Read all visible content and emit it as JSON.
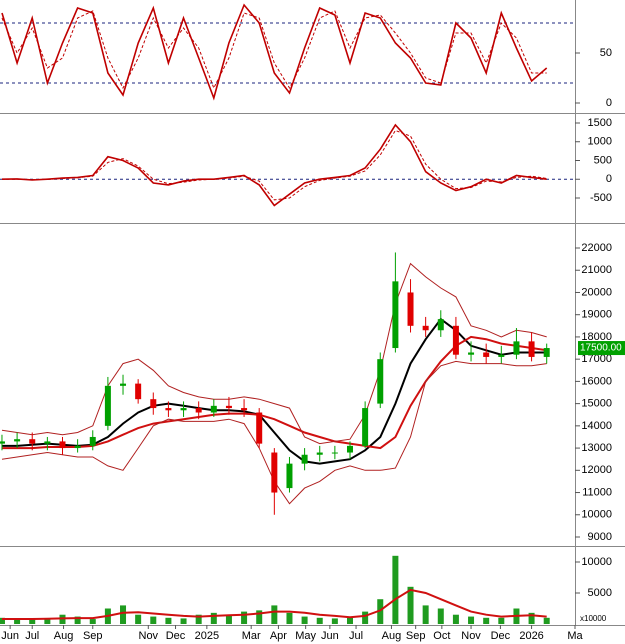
{
  "chart_data": [
    {
      "type": "line",
      "x": [
        0,
        1,
        2,
        3,
        4,
        5,
        6,
        7,
        8,
        9,
        10,
        11,
        12,
        13,
        14,
        15,
        16,
        17,
        18,
        19,
        20,
        21,
        22,
        23,
        24,
        25,
        26,
        27,
        28,
        29,
        30,
        31,
        32,
        33,
        34,
        35,
        36
      ],
      "xlim": [
        -0.13,
        37.87
      ],
      "ylim": [
        -9,
        101
      ],
      "yticks": [
        0,
        50
      ],
      "ref_lines": [
        80,
        20
      ],
      "ref_color": "#1a237e",
      "series": [
        {
          "color": "#c00000",
          "dash": false,
          "values": [
            90,
            40,
            85,
            20,
            60,
            95,
            90,
            30,
            8,
            60,
            95,
            40,
            85,
            45,
            5,
            60,
            98,
            80,
            30,
            10,
            55,
            95,
            88,
            40,
            90,
            85,
            60,
            45,
            20,
            18,
            80,
            65,
            30,
            90,
            55,
            22,
            35
          ]
        },
        {
          "color": "#c00000",
          "dash": true,
          "values": [
            85,
            50,
            75,
            35,
            45,
            85,
            92,
            45,
            15,
            45,
            85,
            55,
            75,
            55,
            15,
            45,
            90,
            85,
            40,
            15,
            45,
            85,
            92,
            55,
            85,
            88,
            70,
            50,
            25,
            20,
            70,
            70,
            40,
            80,
            65,
            30,
            30
          ]
        }
      ]
    },
    {
      "type": "line",
      "x": [
        0,
        1,
        2,
        3,
        4,
        5,
        6,
        7,
        8,
        9,
        10,
        11,
        12,
        13,
        14,
        15,
        16,
        17,
        18,
        19,
        20,
        21,
        22,
        23,
        24,
        25,
        26,
        27,
        28,
        29,
        30,
        31,
        32,
        33,
        34,
        35,
        36
      ],
      "xlim": [
        -0.13,
        37.87
      ],
      "ylim": [
        -1140,
        1713
      ],
      "yticks": [
        -500,
        0,
        500,
        1000,
        1500
      ],
      "ref_lines": [
        0
      ],
      "ref_color": "#1a237e",
      "series": [
        {
          "color": "#c00000",
          "dash": false,
          "values": [
            0,
            10,
            -20,
            0,
            30,
            50,
            100,
            600,
            500,
            300,
            -100,
            -150,
            -50,
            0,
            0,
            50,
            100,
            -150,
            -700,
            -400,
            -100,
            0,
            50,
            100,
            300,
            800,
            1450,
            1000,
            200,
            -100,
            -300,
            -200,
            0,
            -100,
            100,
            50,
            0
          ]
        },
        {
          "color": "#c00000",
          "dash": true,
          "values": [
            0,
            5,
            -10,
            -5,
            20,
            40,
            80,
            450,
            550,
            350,
            0,
            -120,
            -80,
            -20,
            0,
            30,
            80,
            -50,
            -550,
            -500,
            -200,
            -30,
            30,
            80,
            220,
            650,
            1300,
            1150,
            400,
            0,
            -250,
            -220,
            -50,
            -70,
            50,
            80,
            20
          ]
        }
      ]
    },
    {
      "type": "candlestick",
      "x": [
        0,
        1,
        2,
        3,
        4,
        5,
        6,
        7,
        8,
        9,
        10,
        11,
        12,
        13,
        14,
        15,
        16,
        17,
        18,
        19,
        20,
        21,
        22,
        23,
        24,
        25,
        26,
        27,
        28,
        29,
        30,
        31,
        32,
        33,
        34,
        35,
        36
      ],
      "xlim": [
        -0.13,
        37.87
      ],
      "ylim": [
        8640,
        23080
      ],
      "yticks": [
        9000,
        10000,
        11000,
        12000,
        13000,
        14000,
        15000,
        16000,
        17000,
        18000,
        19000,
        20000,
        21000,
        22000
      ],
      "up_color": "#00a000",
      "down_color": "#e00000",
      "open": [
        13200,
        13300,
        13400,
        13200,
        13300,
        13000,
        13100,
        14000,
        15800,
        15900,
        15200,
        14800,
        14700,
        14800,
        14600,
        14900,
        14800,
        14600,
        12800,
        11200,
        12300,
        12700,
        12800,
        12800,
        13100,
        15000,
        17500,
        20000,
        18500,
        18300,
        18500,
        17200,
        17300,
        17100,
        17200,
        17800,
        17100
      ],
      "high": [
        13600,
        13700,
        13700,
        13500,
        13500,
        13400,
        13800,
        16200,
        16300,
        16100,
        15500,
        15100,
        15100,
        15100,
        15200,
        15300,
        15200,
        14800,
        13000,
        12600,
        13000,
        13100,
        13100,
        13300,
        15100,
        17300,
        21800,
        20600,
        18900,
        19200,
        18900,
        17800,
        17700,
        17600,
        18400,
        18200,
        17700
      ],
      "low": [
        12900,
        13000,
        12900,
        12900,
        12700,
        12800,
        12900,
        13800,
        15400,
        15000,
        14500,
        14400,
        14400,
        14300,
        14400,
        14500,
        14400,
        13000,
        10000,
        11000,
        12000,
        12400,
        12500,
        12500,
        13000,
        14800,
        17300,
        18200,
        18000,
        18000,
        17000,
        16900,
        16800,
        16800,
        17000,
        16900,
        16800
      ],
      "close": [
        13300,
        13400,
        13200,
        13300,
        13000,
        13100,
        13500,
        15800,
        15900,
        15200,
        14800,
        14700,
        14800,
        14600,
        14900,
        14800,
        14700,
        13200,
        11000,
        12300,
        12700,
        12800,
        12800,
        13100,
        14800,
        17000,
        20500,
        18500,
        18300,
        18800,
        17200,
        17300,
        17100,
        17200,
        17800,
        17100,
        17500
      ],
      "overlays": [
        {
          "color": "#000000",
          "width": 2,
          "values": [
            13100,
            13100,
            13150,
            13200,
            13150,
            13100,
            13150,
            13500,
            14100,
            14600,
            14900,
            15000,
            14900,
            14800,
            14700,
            14700,
            14650,
            14500,
            13700,
            12900,
            12400,
            12300,
            12400,
            12500,
            12900,
            13500,
            15000,
            16800,
            17900,
            18800,
            18300,
            17600,
            17400,
            17200,
            17300,
            17300,
            17300
          ]
        },
        {
          "color": "#d01010",
          "width": 2,
          "values": [
            13000,
            13000,
            13000,
            13050,
            13050,
            13050,
            13100,
            13300,
            13600,
            13900,
            14100,
            14200,
            14300,
            14400,
            14500,
            14550,
            14550,
            14500,
            14300,
            14000,
            13700,
            13500,
            13300,
            13200,
            13100,
            13000,
            13500,
            14900,
            16000,
            16900,
            17600,
            18000,
            17900,
            17700,
            17600,
            17500,
            17400
          ]
        },
        {
          "color": "#b02020",
          "width": 1,
          "values": [
            13800,
            13700,
            13600,
            13700,
            13600,
            13700,
            14000,
            15800,
            16800,
            17000,
            16500,
            15800,
            15500,
            15300,
            15200,
            15200,
            15300,
            15200,
            15000,
            14800,
            13500,
            13200,
            13300,
            13400,
            14500,
            16500,
            19500,
            21300,
            20700,
            20200,
            19800,
            18500,
            18300,
            18000,
            18300,
            18200,
            18000
          ]
        },
        {
          "color": "#b02020",
          "width": 1,
          "values": [
            12500,
            12600,
            12700,
            12800,
            12700,
            12600,
            12600,
            12200,
            12000,
            13000,
            14000,
            14300,
            14200,
            14200,
            14200,
            14300,
            14100,
            13000,
            11500,
            10500,
            11200,
            11500,
            12000,
            12200,
            12000,
            12000,
            12100,
            13500,
            16000,
            16700,
            16900,
            16800,
            16800,
            16800,
            16700,
            16700,
            16800
          ]
        }
      ],
      "price_label": {
        "value": 17500,
        "label": "17500.00"
      },
      "price_label_color": "#00a000"
    },
    {
      "type": "bar",
      "x": [
        0,
        1,
        2,
        3,
        4,
        5,
        6,
        7,
        8,
        9,
        10,
        11,
        12,
        13,
        14,
        15,
        16,
        17,
        18,
        19,
        20,
        21,
        22,
        23,
        24,
        25,
        26,
        27,
        28,
        29,
        30,
        31,
        32,
        33,
        34,
        35,
        36
      ],
      "xlim": [
        -0.13,
        37.87
      ],
      "ylim": [
        -160,
        12260
      ],
      "yticks": [
        5000,
        10000
      ],
      "color": "#1f9b1f",
      "unit_label": "x10000",
      "values": [
        1000,
        800,
        700,
        900,
        1500,
        1200,
        800,
        2500,
        3000,
        1500,
        1200,
        1000,
        900,
        1500,
        1800,
        1500,
        2000,
        2200,
        3000,
        1800,
        1200,
        1000,
        900,
        1000,
        2000,
        4000,
        11000,
        6000,
        3000,
        2500,
        1500,
        1200,
        1000,
        1000,
        2500,
        1800,
        1000
      ],
      "ma": {
        "color": "#d01010",
        "values": [
          800,
          800,
          800,
          850,
          900,
          950,
          950,
          1300,
          1800,
          1900,
          1700,
          1500,
          1300,
          1200,
          1300,
          1400,
          1500,
          1700,
          2000,
          2000,
          1800,
          1500,
          1300,
          1100,
          1300,
          2200,
          4000,
          5500,
          5000,
          4000,
          3000,
          2000,
          1500,
          1200,
          1300,
          1400,
          1200
        ]
      },
      "xticks": [
        {
          "value": 0.54,
          "label": "Jun"
        },
        {
          "value": 2.0,
          "label": "Jul"
        },
        {
          "value": 4.07,
          "label": "Aug"
        },
        {
          "value": 6.0,
          "label": "Sep"
        },
        {
          "value": 9.67,
          "label": "Nov"
        },
        {
          "value": 11.47,
          "label": "Dec"
        },
        {
          "value": 13.54,
          "label": "2025"
        },
        {
          "value": 16.47,
          "label": "Mar"
        },
        {
          "value": 18.27,
          "label": "Apr"
        },
        {
          "value": 20.07,
          "label": "May"
        },
        {
          "value": 21.67,
          "label": "Jun"
        },
        {
          "value": 23.4,
          "label": "Jul"
        },
        {
          "value": 25.74,
          "label": "Aug"
        },
        {
          "value": 27.34,
          "label": "Sep"
        },
        {
          "value": 29.07,
          "label": "Oct"
        },
        {
          "value": 31.0,
          "label": "Nov"
        },
        {
          "value": 32.94,
          "label": "Dec"
        },
        {
          "value": 35.0,
          "label": "2026"
        },
        {
          "value": 37.87,
          "label": "Ma"
        }
      ]
    }
  ]
}
